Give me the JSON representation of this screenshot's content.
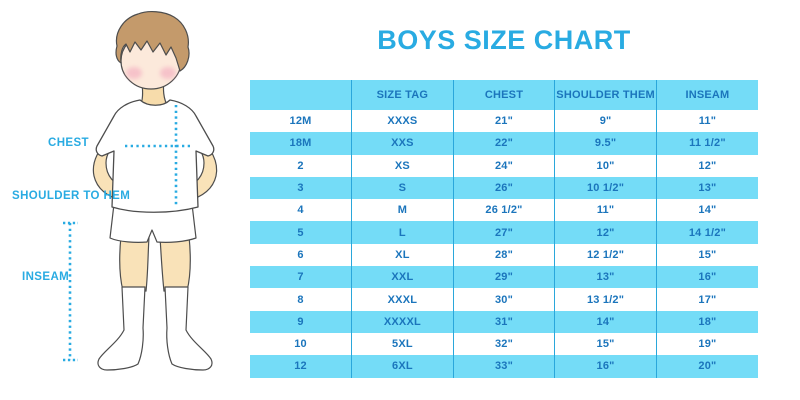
{
  "title": "BOYS SIZE CHART",
  "figure": {
    "labels": {
      "chest": "CHEST",
      "shoulder_to_hem": "SHOULDER TO HEM",
      "inseam": "INSEAM"
    }
  },
  "colors": {
    "accent_blue": "#29ABE2",
    "stripe_blue": "#74DCF7",
    "table_text_blue": "#1B75BC",
    "divider_blue": "#2AA7DB"
  },
  "chart_data": {
    "type": "table",
    "title": "BOYS SIZE CHART",
    "columns": [
      "",
      "SIZE TAG",
      "CHEST",
      "SHOULDER THEM",
      "INSEAM"
    ],
    "rows": [
      [
        "12M",
        "XXXS",
        "21\"",
        "9\"",
        "11\""
      ],
      [
        "18M",
        "XXS",
        "22\"",
        "9.5\"",
        "11 1/2\""
      ],
      [
        "2",
        "XS",
        "24\"",
        "10\"",
        "12\""
      ],
      [
        "3",
        "S",
        "26\"",
        "10 1/2\"",
        "13\""
      ],
      [
        "4",
        "M",
        "26 1/2\"",
        "11\"",
        "14\""
      ],
      [
        "5",
        "L",
        "27\"",
        "12\"",
        "14 1/2\""
      ],
      [
        "6",
        "XL",
        "28\"",
        "12 1/2\"",
        "15\""
      ],
      [
        "7",
        "XXL",
        "29\"",
        "13\"",
        "16\""
      ],
      [
        "8",
        "XXXL",
        "30\"",
        "13 1/2\"",
        "17\""
      ],
      [
        "9",
        "XXXXL",
        "31\"",
        "14\"",
        "18\""
      ],
      [
        "10",
        "5XL",
        "32\"",
        "15\"",
        "19\""
      ],
      [
        "12",
        "6XL",
        "33\"",
        "16\"",
        "20\""
      ]
    ],
    "layout_hints": {
      "striped_rows": true,
      "header_background": "#74DCF7",
      "column_dividers": true,
      "outer_border": false
    }
  }
}
